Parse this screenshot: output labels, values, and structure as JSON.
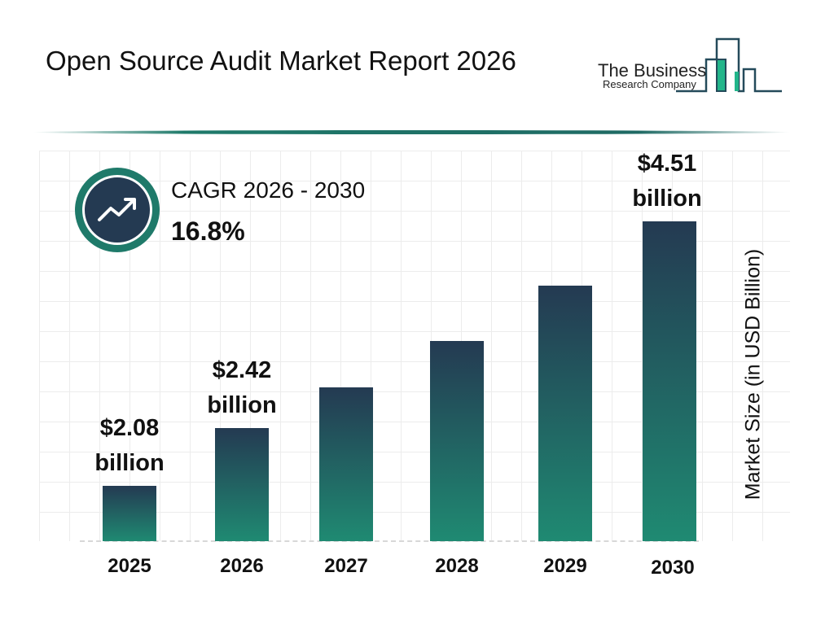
{
  "header": {
    "title": "Open Source Audit Market Report 2026"
  },
  "logo": {
    "line1": "The Business",
    "line2": "Research Company"
  },
  "cagr": {
    "label": "CAGR 2026 - 2030",
    "value": "16.8%",
    "icon": "trending-up-icon"
  },
  "colors": {
    "bar_top": "#243a52",
    "bar_bottom": "#1f8a72",
    "accent": "#1f7a6a"
  },
  "chart_data": {
    "type": "bar",
    "categories": [
      "2025",
      "2026",
      "2027",
      "2028",
      "2029",
      "2030"
    ],
    "values": [
      2.08,
      2.42,
      2.83,
      3.3,
      3.86,
      4.51
    ],
    "data_labels": [
      "$2.08 billion",
      "$2.42 billion",
      "",
      "",
      "",
      "$4.51 billion"
    ],
    "ylabel": "Market Size (in USD Billion)",
    "xlabel": "",
    "grid": true
  }
}
